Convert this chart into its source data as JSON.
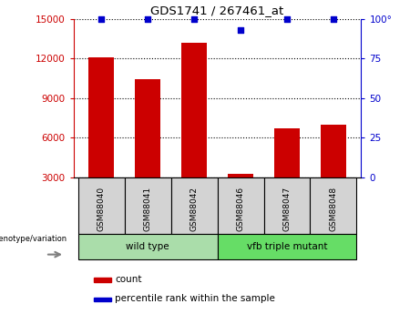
{
  "title": "GDS1741 / 267461_at",
  "categories": [
    "GSM88040",
    "GSM88041",
    "GSM88042",
    "GSM88046",
    "GSM88047",
    "GSM88048"
  ],
  "bar_values": [
    12100,
    10400,
    13200,
    3300,
    6700,
    7000
  ],
  "percentile_values": [
    100,
    100,
    100,
    93,
    100,
    100
  ],
  "bar_color": "#cc0000",
  "dot_color": "#0000cc",
  "ylim_left": [
    3000,
    15000
  ],
  "ylim_right": [
    0,
    100
  ],
  "yticks_left": [
    3000,
    6000,
    9000,
    12000,
    15000
  ],
  "yticks_right": [
    0,
    25,
    50,
    75,
    100
  ],
  "groups": [
    {
      "label": "wild type",
      "indices": [
        0,
        1,
        2
      ],
      "color": "#aaddaa"
    },
    {
      "label": "vfb triple mutant",
      "indices": [
        3,
        4,
        5
      ],
      "color": "#66dd66"
    }
  ],
  "label_box_color": "#d3d3d3",
  "legend_count_label": "count",
  "legend_percentile_label": "percentile rank within the sample",
  "genotype_label": "genotype/variation",
  "left_axis_color": "#cc0000",
  "right_axis_color": "#0000cc",
  "bar_bottom": 3000
}
